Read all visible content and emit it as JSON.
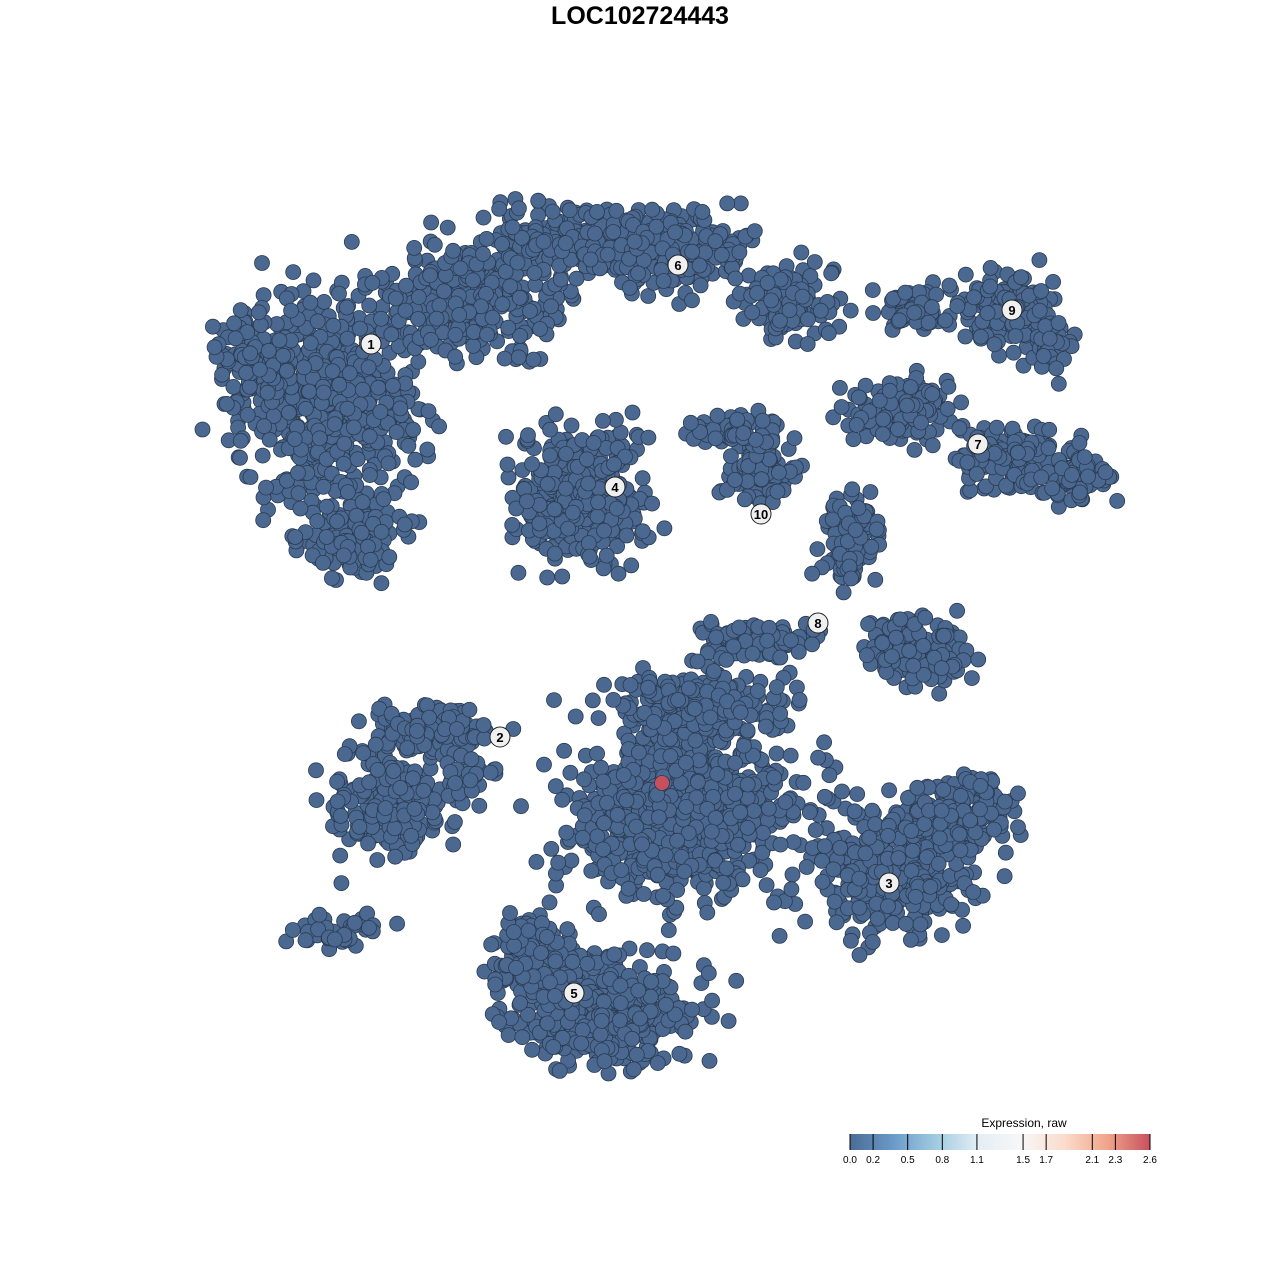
{
  "chart_data": {
    "type": "scatter",
    "title": "LOC102724443",
    "xlabel": "",
    "ylabel": "",
    "grid": false,
    "axes_visible": false,
    "cluster_labels": [
      "1",
      "2",
      "3",
      "4",
      "5",
      "6",
      "7",
      "8",
      "9",
      "10"
    ],
    "point_color_low": "#4a6890",
    "point_stroke": "#2b3b52",
    "highlight_point": {
      "expression": 2.6,
      "color": "#c8505e"
    },
    "base_expression": 0.0,
    "legend": {
      "title": "Expression, raw",
      "placement": "bottom-right",
      "ticks": [
        "0.0",
        "0.2",
        "0.5",
        "0.8",
        "1.1",
        "1.5",
        "1.7",
        "2.1",
        "2.3",
        "2.6"
      ],
      "tick_values": [
        0.0,
        0.2,
        0.5,
        0.8,
        1.1,
        1.5,
        1.7,
        2.1,
        2.3,
        2.6
      ],
      "colors": [
        "#4a6b96",
        "#6a9ac8",
        "#9fcbe1",
        "#e4eef5",
        "#f7f7f7",
        "#fbdccd",
        "#f0a58a",
        "#c8505e"
      ],
      "range": [
        0,
        2.6
      ]
    }
  }
}
